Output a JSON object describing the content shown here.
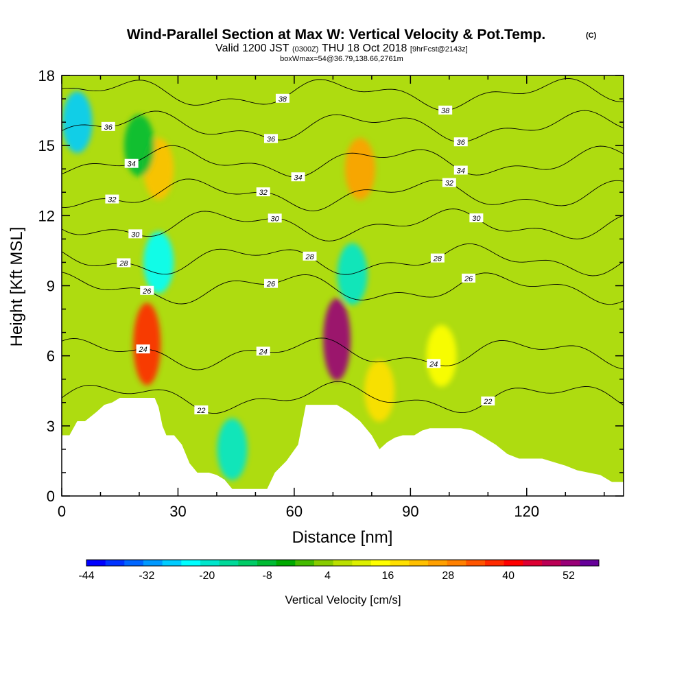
{
  "chart_data": {
    "type": "heatmap",
    "title": "Wind-Parallel Section at Max W: Vertical Velocity & Pot.Temp.",
    "copyright_mark": "(C)",
    "subtitle_line1_a": "Valid 1200 JST",
    "subtitle_line1_b": "(0300Z)",
    "subtitle_line1_c": "THU 18 Oct 2018",
    "subtitle_line1_d": "[9hrFcst@2143z]",
    "subtitle_line2": "boxWmax=54@36.79,138.66,2761m",
    "xlabel": "Distance [nm]",
    "ylabel": "Height [Kft MSL]",
    "xlim": [
      0,
      145
    ],
    "ylim": [
      0,
      18
    ],
    "xticks": [
      0,
      30,
      60,
      90,
      120
    ],
    "yticks": [
      0,
      3,
      6,
      9,
      12,
      15,
      18
    ],
    "colorbar": {
      "label": "Vertical Velocity [cm/s]",
      "min": -44,
      "max": 58,
      "tick_values": [
        -44,
        -32,
        -20,
        -8,
        4,
        16,
        28,
        40,
        52
      ],
      "colors": [
        "#0000ff",
        "#0033ff",
        "#0066ff",
        "#0099ff",
        "#00ccff",
        "#00ffff",
        "#00e6cc",
        "#00d999",
        "#00cc66",
        "#00bb33",
        "#00aa00",
        "#44bb00",
        "#88cc00",
        "#bbe000",
        "#ddf000",
        "#ffff00",
        "#ffe000",
        "#ffc000",
        "#ffa000",
        "#ff8000",
        "#ff5500",
        "#ff2a00",
        "#ff0000",
        "#dd0033",
        "#bb0055",
        "#990077",
        "#660099"
      ]
    },
    "velocity_features": [
      {
        "x": 71,
        "y": 6.7,
        "w": 54,
        "note": "max updraft core"
      },
      {
        "x": 22,
        "y": 6.5,
        "w": 38
      },
      {
        "x": 25,
        "y": 14,
        "w": 22
      },
      {
        "x": 77,
        "y": 14,
        "w": 24
      },
      {
        "x": 82,
        "y": 4.5,
        "w": 18
      },
      {
        "x": 98,
        "y": 6,
        "w": 16
      },
      {
        "x": 4,
        "y": 16,
        "w": -26
      },
      {
        "x": 25,
        "y": 10,
        "w": -22
      },
      {
        "x": 44,
        "y": 2,
        "w": -20
      },
      {
        "x": 75,
        "y": 9.5,
        "w": -18
      },
      {
        "x": 20,
        "y": 15,
        "w": -10
      }
    ],
    "terrain_profile": {
      "x": [
        0,
        2,
        4,
        6,
        9,
        11,
        13,
        15,
        17,
        21,
        24,
        25,
        26,
        27,
        29,
        31,
        33,
        35,
        38,
        40,
        42,
        44,
        48,
        51,
        53,
        55,
        58,
        61,
        63,
        68,
        71,
        74,
        77,
        80,
        82,
        84,
        86,
        88,
        91,
        93,
        95,
        100,
        103,
        106,
        109,
        112,
        115,
        118,
        121,
        124,
        128,
        130,
        133,
        136,
        139,
        142,
        145
      ],
      "y": [
        2.6,
        2.6,
        3.2,
        3.2,
        3.6,
        3.9,
        4.0,
        4.2,
        4.2,
        4.2,
        4.2,
        3.8,
        3.0,
        2.6,
        2.6,
        2.2,
        1.4,
        1.0,
        1.0,
        0.9,
        0.7,
        0.3,
        0.3,
        0.3,
        0.3,
        1.0,
        1.5,
        2.2,
        3.9,
        3.9,
        3.9,
        3.6,
        3.2,
        2.6,
        2.0,
        2.3,
        2.5,
        2.6,
        2.6,
        2.8,
        2.9,
        2.9,
        2.9,
        2.8,
        2.5,
        2.2,
        1.8,
        1.6,
        1.6,
        1.6,
        1.4,
        1.3,
        1.1,
        1.0,
        0.9,
        0.6,
        0.6
      ]
    },
    "theta_contours": [
      {
        "label": "22",
        "base": 4.2,
        "label_x": [
          36,
          110
        ]
      },
      {
        "label": "24",
        "base": 6.1,
        "label_x": [
          21,
          52,
          96
        ]
      },
      {
        "label": "26",
        "base": 8.9,
        "label_x": [
          22,
          54,
          105
        ]
      },
      {
        "label": "28",
        "base": 10.1,
        "label_x": [
          16,
          64,
          97
        ]
      },
      {
        "label": "30",
        "base": 11.6,
        "label_x": [
          19,
          55,
          107
        ]
      },
      {
        "label": "32",
        "base": 12.9,
        "label_x": [
          13,
          52,
          100
        ]
      },
      {
        "label": "34",
        "base": 14.3,
        "label_x": [
          18,
          61,
          103
        ]
      },
      {
        "label": "36",
        "base": 15.8,
        "label_x": [
          12,
          54,
          103
        ]
      },
      {
        "label": "38",
        "base": 17.2,
        "label_x": [
          57,
          99
        ]
      }
    ]
  }
}
